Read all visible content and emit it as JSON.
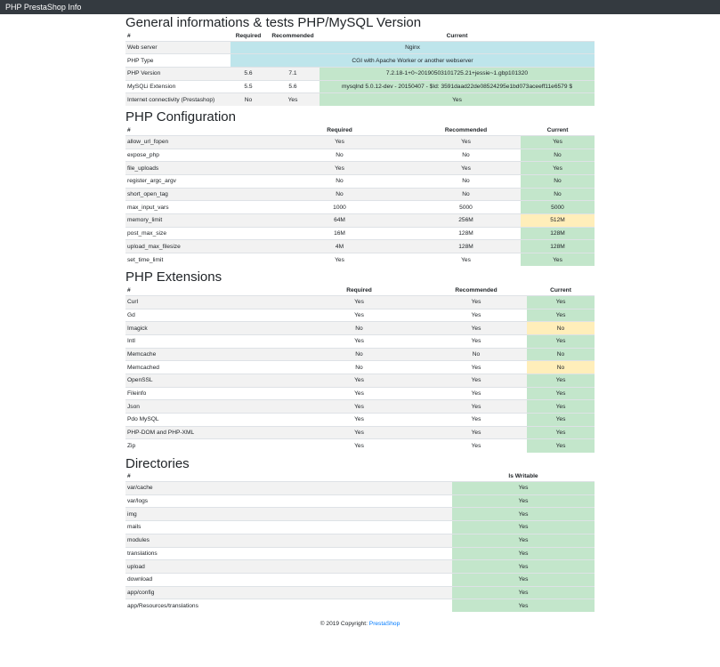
{
  "navbar": {
    "brand": "PHP PrestaShop Info"
  },
  "general": {
    "title": "General informations & tests PHP/MySQL Version",
    "headers": [
      "#",
      "Required",
      "Recommended",
      "Current"
    ],
    "rows": [
      {
        "name": "Web server",
        "current": "Nginx"
      },
      {
        "name": "PHP Type",
        "current": "CGI with Apache Worker or another webserver"
      },
      {
        "name": "PHP Version",
        "required": "5.6",
        "recommended": "7.1",
        "current": "7.2.18-1+0~20190503101725.21+jessie~1.gbp101320"
      },
      {
        "name": "MySQLi Extension",
        "required": "5.5",
        "recommended": "5.6",
        "current": "mysqlnd 5.0.12-dev - 20150407 - $Id: 3591daad22de08524295e1bd073aceeff11e6579 $"
      },
      {
        "name": "Internet connectivity (Prestashop)",
        "required": "No",
        "recommended": "Yes",
        "current": "Yes"
      }
    ]
  },
  "config": {
    "title": "PHP Configuration",
    "headers": [
      "#",
      "Required",
      "Recommended",
      "Current"
    ],
    "rows": [
      [
        "allow_url_fopen",
        "Yes",
        "Yes",
        "Yes"
      ],
      [
        "expose_php",
        "No",
        "No",
        "No"
      ],
      [
        "file_uploads",
        "Yes",
        "Yes",
        "Yes"
      ],
      [
        "register_argc_argv",
        "No",
        "No",
        "No"
      ],
      [
        "short_open_tag",
        "No",
        "No",
        "No"
      ],
      [
        "max_input_vars",
        "1000",
        "5000",
        "5000"
      ],
      [
        "memory_limit",
        "64M",
        "256M",
        "512M"
      ],
      [
        "post_max_size",
        "16M",
        "128M",
        "128M"
      ],
      [
        "upload_max_filesize",
        "4M",
        "128M",
        "128M"
      ],
      [
        "set_time_limit",
        "Yes",
        "Yes",
        "Yes"
      ]
    ]
  },
  "extensions": {
    "title": "PHP Extensions",
    "headers": [
      "#",
      "Required",
      "Recommended",
      "Current"
    ],
    "rows": [
      [
        "Curl",
        "Yes",
        "Yes",
        "Yes"
      ],
      [
        "Gd",
        "Yes",
        "Yes",
        "Yes"
      ],
      [
        "Imagick",
        "No",
        "Yes",
        "No"
      ],
      [
        "Intl",
        "Yes",
        "Yes",
        "Yes"
      ],
      [
        "Memcache",
        "No",
        "No",
        "No"
      ],
      [
        "Memcached",
        "No",
        "Yes",
        "No"
      ],
      [
        "OpenSSL",
        "Yes",
        "Yes",
        "Yes"
      ],
      [
        "Fileinfo",
        "Yes",
        "Yes",
        "Yes"
      ],
      [
        "Json",
        "Yes",
        "Yes",
        "Yes"
      ],
      [
        "Pdo MySQL",
        "Yes",
        "Yes",
        "Yes"
      ],
      [
        "PHP-DOM and PHP-XML",
        "Yes",
        "Yes",
        "Yes"
      ],
      [
        "Zip",
        "Yes",
        "Yes",
        "Yes"
      ]
    ]
  },
  "directories": {
    "title": "Directories",
    "headers": [
      "#",
      "Is Writable"
    ],
    "rows": [
      [
        "var/cache",
        "Yes"
      ],
      [
        "var/logs",
        "Yes"
      ],
      [
        "img",
        "Yes"
      ],
      [
        "mails",
        "Yes"
      ],
      [
        "modules",
        "Yes"
      ],
      [
        "translations",
        "Yes"
      ],
      [
        "upload",
        "Yes"
      ],
      [
        "download",
        "Yes"
      ],
      [
        "app/config",
        "Yes"
      ],
      [
        "app/Resources/translations",
        "Yes"
      ]
    ]
  },
  "footer": {
    "text": "© 2019 Copyright: ",
    "link": "PrestaShop"
  },
  "colors": {
    "navbar": "#343a40",
    "info": "#bee5eb",
    "success": "#c3e6cb",
    "warning": "#ffeeba",
    "link": "#007bff"
  }
}
